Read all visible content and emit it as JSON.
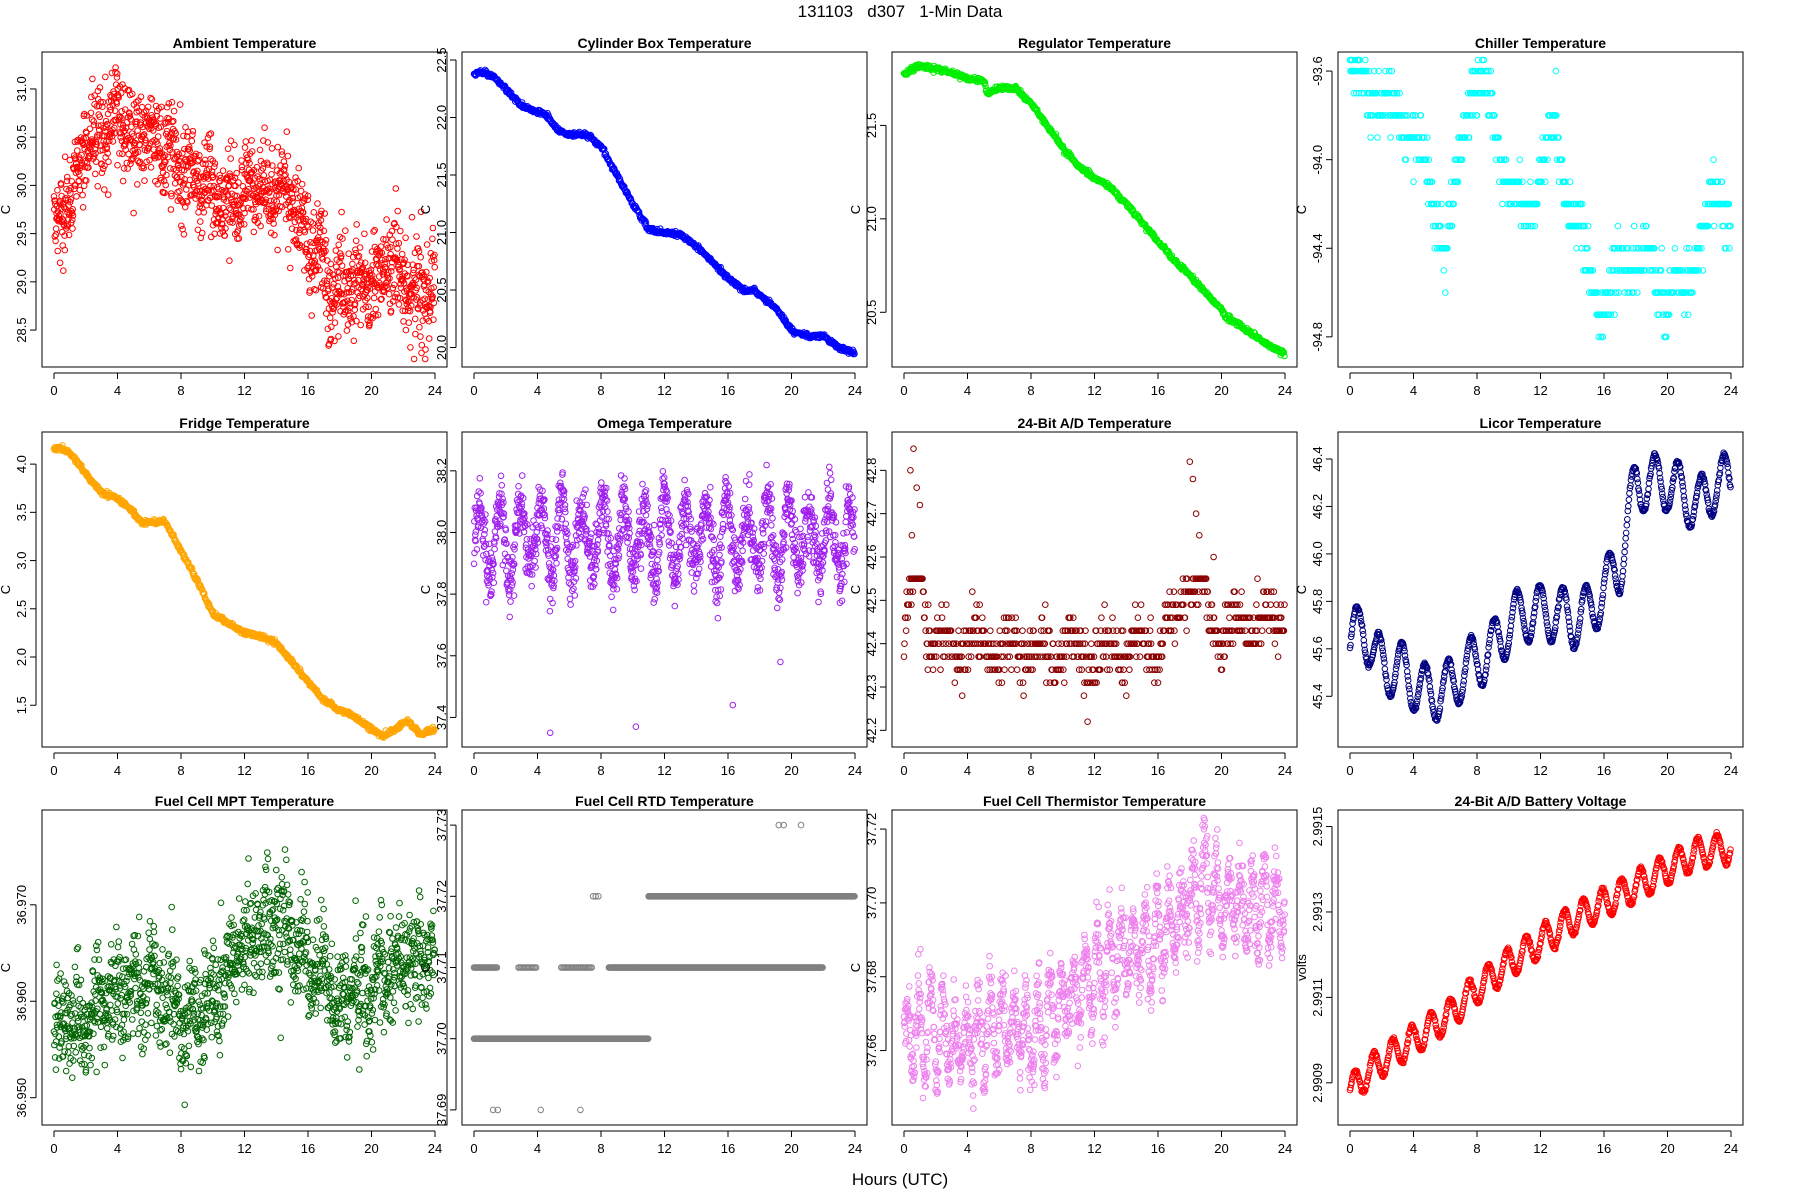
{
  "figure": {
    "title": "131103   d307   1-Min Data",
    "xlabel": "Hours (UTC)"
  },
  "colors": {
    "red": "#ff0000",
    "blue": "#0000ff",
    "green": "#00ee00",
    "cyan": "#00ffff",
    "orange": "#ffa500",
    "purple": "#a020f0",
    "darkred": "#8b0000",
    "navy": "#000080",
    "darkgreen": "#006400",
    "gray": "#808080",
    "violet": "#ee82ee"
  },
  "chart_data": [
    {
      "type": "scatter",
      "title": "Ambient Temperature",
      "ylabel": "C",
      "color": "#ff0000",
      "xlim": [
        0,
        24
      ],
      "ylim": [
        28.2,
        31.3
      ],
      "xticks": [
        "0",
        "4",
        "8",
        "12",
        "16",
        "20",
        "24"
      ],
      "yticks": [
        28.5,
        29.0,
        29.5,
        30.0,
        30.5,
        31.0
      ],
      "ytick_labels": [
        "28.5",
        "29.0",
        "29.5",
        "30.0",
        "30.5",
        "31.0"
      ],
      "style": "noisy",
      "spread": 0.3,
      "x": [
        0,
        0.5,
        1,
        2,
        3,
        4,
        5,
        6,
        7,
        8,
        9,
        10,
        11,
        12,
        13,
        14,
        15,
        16,
        16.8,
        17.3,
        18,
        19,
        20,
        21,
        22,
        23,
        24
      ],
      "y": [
        29.5,
        29.6,
        30.0,
        30.4,
        30.5,
        30.8,
        30.5,
        30.5,
        30.4,
        30.2,
        30.1,
        29.9,
        29.8,
        29.9,
        30.0,
        30.0,
        29.8,
        29.4,
        29.3,
        28.8,
        28.9,
        29.0,
        29.0,
        29.2,
        29.0,
        28.9,
        29.0
      ]
    },
    {
      "type": "scatter",
      "title": "Cylinder Box Temperature",
      "ylabel": "C",
      "color": "#0000ff",
      "xlim": [
        0,
        24
      ],
      "ylim": [
        19.9,
        22.5
      ],
      "xticks": [
        "0",
        "4",
        "8",
        "12",
        "16",
        "20",
        "24"
      ],
      "yticks": [
        20.0,
        20.5,
        21.0,
        21.5,
        22.0,
        22.5
      ],
      "ytick_labels": [
        "20.0",
        "20.5",
        "21.0",
        "21.5",
        "22.0",
        "22.5"
      ],
      "style": "line",
      "x": [
        0,
        0.7,
        1.3,
        2,
        3,
        4,
        4.6,
        5.2,
        6,
        7,
        8,
        9,
        10,
        11,
        12,
        13,
        14,
        15,
        16,
        17,
        17.7,
        18.3,
        19,
        20,
        21,
        22,
        23,
        24
      ],
      "y": [
        22.38,
        22.39,
        22.35,
        22.25,
        22.1,
        22.05,
        22.02,
        21.9,
        21.85,
        21.86,
        21.75,
        21.5,
        21.25,
        21.03,
        21.0,
        20.98,
        20.88,
        20.75,
        20.6,
        20.5,
        20.5,
        20.42,
        20.35,
        20.15,
        20.1,
        20.1,
        20.0,
        19.95
      ]
    },
    {
      "type": "scatter",
      "title": "Regulator Temperature",
      "ylabel": "C",
      "color": "#00ee00",
      "xlim": [
        0,
        24
      ],
      "ylim": [
        20.25,
        21.85
      ],
      "xticks": [
        "0",
        "4",
        "8",
        "12",
        "16",
        "20",
        "24"
      ],
      "yticks": [
        20.5,
        21.0,
        21.5
      ],
      "ytick_labels": [
        "20.5",
        "21.0",
        "21.5"
      ],
      "style": "line",
      "x": [
        0,
        0.5,
        1,
        2,
        3,
        4,
        5,
        5.3,
        6,
        7,
        8,
        9,
        10,
        11,
        12,
        13,
        14,
        15,
        16,
        17,
        18,
        19,
        20,
        20.3,
        21,
        22,
        23,
        24
      ],
      "y": [
        21.77,
        21.8,
        21.82,
        21.8,
        21.78,
        21.75,
        21.74,
        21.67,
        21.7,
        21.7,
        21.62,
        21.5,
        21.38,
        21.28,
        21.22,
        21.17,
        21.08,
        20.98,
        20.88,
        20.78,
        20.7,
        20.6,
        20.52,
        20.47,
        20.44,
        20.38,
        20.32,
        20.28
      ]
    },
    {
      "type": "scatter",
      "title": "Chiller Temperature",
      "ylabel": "C",
      "color": "#00ffff",
      "xlim": [
        0,
        24
      ],
      "ylim": [
        -94.9,
        -93.55
      ],
      "xticks": [
        "0",
        "4",
        "8",
        "12",
        "16",
        "20",
        "24"
      ],
      "yticks": [
        -94.8,
        -94.4,
        -94.0,
        -93.6
      ],
      "ytick_labels": [
        "-94.8",
        "-94.4",
        "-94.0",
        "-93.6"
      ],
      "style": "levels",
      "levels": [
        -93.5,
        -93.6,
        -93.7,
        -93.8,
        -93.9,
        -94.0,
        -94.1,
        -94.2,
        -94.3,
        -94.4,
        -94.5,
        -94.6,
        -94.7,
        -94.8,
        -94.9
      ],
      "x": [
        0,
        1,
        2,
        3,
        4,
        5,
        6,
        7,
        7.8,
        9,
        10,
        11,
        12,
        13,
        14,
        15,
        16,
        17,
        18,
        19,
        20,
        21,
        22,
        23,
        24
      ],
      "y": [
        -93.6,
        -93.65,
        -93.75,
        -93.8,
        -93.85,
        -94.1,
        -94.4,
        -94.0,
        -93.6,
        -93.8,
        -94.1,
        -94.3,
        -94.0,
        -93.9,
        -94.2,
        -94.5,
        -94.7,
        -94.5,
        -94.45,
        -94.5,
        -94.6,
        -94.6,
        -94.35,
        -94.2,
        -94.2
      ]
    },
    {
      "type": "scatter",
      "title": "Fridge Temperature",
      "ylabel": "C",
      "color": "#ffa500",
      "xlim": [
        0,
        24
      ],
      "ylim": [
        1.15,
        4.25
      ],
      "xticks": [
        "0",
        "4",
        "8",
        "12",
        "16",
        "20",
        "24"
      ],
      "yticks": [
        1.5,
        2.0,
        2.5,
        3.0,
        3.5,
        4.0
      ],
      "ytick_labels": [
        "1.5",
        "2.0",
        "2.5",
        "3.0",
        "3.5",
        "4.0"
      ],
      "style": "line",
      "x": [
        0,
        0.5,
        1,
        2,
        3,
        4,
        5,
        5.5,
        6,
        7,
        8,
        9,
        10,
        11,
        12,
        13,
        14,
        15,
        16,
        17,
        18,
        19,
        20,
        20.7,
        21.5,
        22.3,
        23,
        24
      ],
      "y": [
        4.15,
        4.16,
        4.12,
        3.9,
        3.7,
        3.65,
        3.5,
        3.4,
        3.4,
        3.4,
        3.1,
        2.8,
        2.45,
        2.35,
        2.25,
        2.22,
        2.15,
        1.95,
        1.75,
        1.55,
        1.45,
        1.38,
        1.25,
        1.18,
        1.25,
        1.35,
        1.2,
        1.25
      ]
    },
    {
      "type": "scatter",
      "title": "Omega Temperature",
      "ylabel": "C",
      "color": "#a020f0",
      "xlim": [
        0,
        24
      ],
      "ylim": [
        37.33,
        38.3
      ],
      "xticks": [
        "0",
        "4",
        "8",
        "12",
        "16",
        "20",
        "24"
      ],
      "yticks": [
        37.4,
        37.6,
        37.8,
        38.0,
        38.2
      ],
      "ytick_labels": [
        "37.4",
        "37.6",
        "37.8",
        "38.0",
        "38.2"
      ],
      "style": "oscill",
      "amp": 0.14,
      "period": 1.3,
      "x": [
        0,
        24
      ],
      "y": [
        37.98,
        37.98
      ],
      "outliers": [
        [
          4.8,
          37.35
        ],
        [
          10.2,
          37.37
        ],
        [
          16.3,
          37.44
        ],
        [
          19.3,
          37.58
        ]
      ]
    },
    {
      "type": "scatter",
      "title": "24-Bit A/D Temperature",
      "ylabel": "C",
      "color": "#8b0000",
      "xlim": [
        0,
        24
      ],
      "ylim": [
        42.18,
        42.87
      ],
      "xticks": [
        "0",
        "4",
        "8",
        "12",
        "16",
        "20",
        "24"
      ],
      "yticks": [
        42.2,
        42.3,
        42.4,
        42.5,
        42.6,
        42.7,
        42.8
      ],
      "ytick_labels": [
        "42.2",
        "42.3",
        "42.4",
        "42.5",
        "42.6",
        "42.7",
        "42.8"
      ],
      "style": "levels",
      "levels": [
        42.22,
        42.25,
        42.28,
        42.31,
        42.34,
        42.37,
        42.4,
        42.43,
        42.46,
        42.49,
        42.52,
        42.55
      ],
      "x": [
        0,
        0.5,
        1,
        1.5,
        2,
        4,
        8,
        12,
        16,
        17,
        18,
        19,
        20,
        22,
        24
      ],
      "y": [
        42.4,
        42.55,
        42.6,
        42.42,
        42.4,
        42.4,
        42.38,
        42.38,
        42.4,
        42.45,
        42.55,
        42.48,
        42.42,
        42.45,
        42.45
      ],
      "spikes": [
        [
          0.4,
          42.8
        ],
        [
          0.6,
          42.85
        ],
        [
          0.8,
          42.76
        ],
        [
          1.0,
          42.72
        ],
        [
          18,
          42.82
        ],
        [
          18.2,
          42.78
        ],
        [
          18.4,
          42.7
        ],
        [
          19.5,
          42.6
        ],
        [
          0.5,
          42.65
        ],
        [
          18.6,
          42.65
        ]
      ]
    },
    {
      "type": "scatter",
      "title": "Licor Temperature",
      "ylabel": "C",
      "color": "#000080",
      "xlim": [
        0,
        24
      ],
      "ylim": [
        45.22,
        46.48
      ],
      "xticks": [
        "0",
        "4",
        "8",
        "12",
        "16",
        "20",
        "24"
      ],
      "yticks": [
        45.4,
        45.6,
        45.8,
        46.0,
        46.2,
        46.4
      ],
      "ytick_labels": [
        "45.4",
        "45.6",
        "45.8",
        "46.0",
        "46.2",
        "46.4"
      ],
      "style": "wave",
      "amp": 0.12,
      "period": 1.45,
      "x": [
        0,
        0.8,
        1.6,
        2.5,
        3.5,
        4.5,
        6,
        7,
        8,
        9,
        10,
        11,
        12,
        13,
        14,
        15,
        16,
        17,
        18,
        19,
        20,
        21,
        22,
        23,
        24
      ],
      "y": [
        45.6,
        45.72,
        45.55,
        45.52,
        45.5,
        45.42,
        45.42,
        45.5,
        45.55,
        45.6,
        45.7,
        45.75,
        45.75,
        45.75,
        45.72,
        45.75,
        45.85,
        45.95,
        46.3,
        46.3,
        46.3,
        46.25,
        46.2,
        46.3,
        46.3
      ]
    },
    {
      "type": "scatter",
      "title": "Fuel Cell MPT Temperature",
      "ylabel": "C",
      "color": "#006400",
      "xlim": [
        0,
        24
      ],
      "ylim": [
        36.948,
        36.979
      ],
      "xticks": [
        "0",
        "4",
        "8",
        "12",
        "16",
        "20",
        "24"
      ],
      "yticks": [
        36.95,
        36.96,
        36.97
      ],
      "ytick_labels": [
        "36.950",
        "36.960",
        "36.970"
      ],
      "style": "noisy",
      "spread": 0.0035,
      "x": [
        0,
        2,
        4,
        6,
        8,
        10,
        12,
        13,
        14,
        15,
        16,
        17,
        18,
        20,
        22,
        24
      ],
      "y": [
        36.958,
        36.958,
        36.961,
        36.962,
        36.958,
        36.96,
        36.966,
        36.967,
        36.969,
        36.966,
        36.964,
        36.962,
        36.96,
        36.962,
        36.964,
        36.964
      ]
    },
    {
      "type": "scatter",
      "title": "Fuel Cell RTD Temperature",
      "ylabel": "C",
      "color": "#808080",
      "xlim": [
        0,
        24
      ],
      "ylim": [
        37.689,
        37.731
      ],
      "xticks": [
        "0",
        "4",
        "8",
        "12",
        "16",
        "20",
        "24"
      ],
      "yticks": [
        37.69,
        37.7,
        37.71,
        37.72,
        37.73
      ],
      "ytick_labels": [
        "37.69",
        "37.70",
        "37.71",
        "37.72",
        "37.73"
      ],
      "style": "bands",
      "bands": [
        {
          "y": 37.7,
          "from": 0.0,
          "to": 11.0,
          "density": 1.0
        },
        {
          "y": 37.71,
          "from": 0.0,
          "to": 1.5,
          "density": 0.6
        },
        {
          "y": 37.71,
          "from": 2.8,
          "to": 4.0,
          "density": 0.4
        },
        {
          "y": 37.71,
          "from": 5.5,
          "to": 7.5,
          "density": 0.4
        },
        {
          "y": 37.71,
          "from": 8.5,
          "to": 22.0,
          "density": 0.85
        },
        {
          "y": 37.72,
          "from": 11.0,
          "to": 24.0,
          "density": 1.0
        },
        {
          "y": 37.72,
          "from": 7.5,
          "to": 8.0,
          "density": 0.2
        }
      ],
      "points": [
        [
          1.2,
          37.69
        ],
        [
          1.5,
          37.69
        ],
        [
          4.2,
          37.69
        ],
        [
          6.7,
          37.69
        ],
        [
          19.2,
          37.73
        ],
        [
          19.5,
          37.73
        ],
        [
          20.6,
          37.73
        ]
      ]
    },
    {
      "type": "scatter",
      "title": "Fuel Cell Thermistor Temperature",
      "ylabel": "C",
      "color": "#ee82ee",
      "xlim": [
        0,
        24
      ],
      "ylim": [
        37.642,
        37.723
      ],
      "xticks": [
        "0",
        "4",
        "8",
        "12",
        "16",
        "20",
        "24"
      ],
      "yticks": [
        37.66,
        37.68,
        37.7,
        37.72
      ],
      "ytick_labels": [
        "37.66",
        "37.68",
        "37.70",
        "37.72"
      ],
      "style": "oscill",
      "amp": 0.012,
      "period": 0.75,
      "x": [
        0,
        2,
        4,
        6,
        8,
        10,
        12,
        14,
        16,
        18,
        19,
        20,
        22,
        24
      ],
      "y": [
        37.665,
        37.665,
        37.662,
        37.668,
        37.665,
        37.672,
        37.68,
        37.686,
        37.69,
        37.7,
        37.705,
        37.7,
        37.7,
        37.7
      ]
    },
    {
      "type": "scatter",
      "title": "24-Bit A/D Battery Voltage",
      "ylabel": "volts",
      "color": "#ff0000",
      "xlim": [
        0,
        24
      ],
      "ylim": [
        2.99082,
        2.99152
      ],
      "xticks": [
        "0",
        "4",
        "8",
        "12",
        "16",
        "20",
        "24"
      ],
      "yticks": [
        2.9909,
        2.9911,
        2.9913,
        2.9915
      ],
      "ytick_labels": [
        "2.9909",
        "2.9911",
        "2.9913",
        "2.9915"
      ],
      "style": "wave",
      "amp": 3.6e-05,
      "period": 1.2,
      "x": [
        0,
        1,
        2,
        4,
        6,
        8,
        10,
        12,
        14,
        16,
        18,
        20,
        22,
        24
      ],
      "y": [
        2.99088,
        2.99092,
        2.99095,
        2.991,
        2.99105,
        2.99112,
        2.99118,
        2.99123,
        2.99128,
        2.99132,
        2.99136,
        2.9914,
        2.99144,
        2.99145
      ]
    }
  ]
}
